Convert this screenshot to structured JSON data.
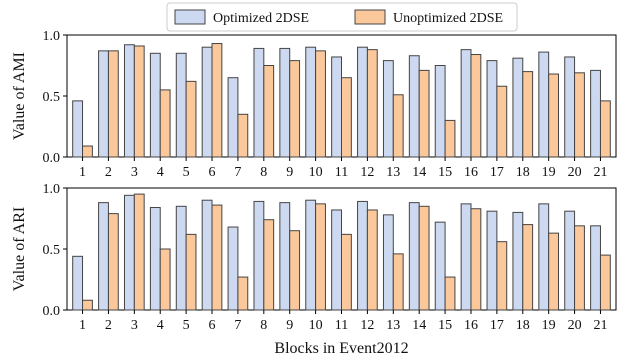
{
  "chart_data": [
    {
      "type": "bar",
      "categories": [
        "1",
        "2",
        "3",
        "4",
        "5",
        "6",
        "7",
        "8",
        "9",
        "10",
        "11",
        "12",
        "13",
        "14",
        "15",
        "16",
        "17",
        "18",
        "19",
        "20",
        "21"
      ],
      "series": [
        {
          "name": "Optimized 2DSE",
          "color": "#ccd9f0",
          "values": [
            0.46,
            0.87,
            0.92,
            0.85,
            0.85,
            0.9,
            0.65,
            0.89,
            0.89,
            0.9,
            0.82,
            0.9,
            0.79,
            0.83,
            0.75,
            0.88,
            0.79,
            0.81,
            0.86,
            0.82,
            0.71
          ]
        },
        {
          "name": "Unoptimized 2DSE",
          "color": "#fbc89c",
          "values": [
            0.09,
            0.87,
            0.91,
            0.55,
            0.62,
            0.93,
            0.35,
            0.75,
            0.79,
            0.87,
            0.65,
            0.88,
            0.51,
            0.71,
            0.3,
            0.84,
            0.58,
            0.7,
            0.68,
            0.69,
            0.46
          ]
        }
      ],
      "ylabel": "Value of AMI",
      "ylim": [
        0,
        1.0
      ],
      "yticks": [
        "0.0",
        "0.5",
        "1.0"
      ]
    },
    {
      "type": "bar",
      "categories": [
        "1",
        "2",
        "3",
        "4",
        "5",
        "6",
        "7",
        "8",
        "9",
        "10",
        "11",
        "12",
        "13",
        "14",
        "15",
        "16",
        "17",
        "18",
        "19",
        "20",
        "21"
      ],
      "series": [
        {
          "name": "Optimized 2DSE",
          "color": "#ccd9f0",
          "values": [
            0.44,
            0.88,
            0.94,
            0.84,
            0.85,
            0.9,
            0.68,
            0.89,
            0.88,
            0.9,
            0.82,
            0.89,
            0.78,
            0.88,
            0.72,
            0.87,
            0.81,
            0.8,
            0.87,
            0.81,
            0.69
          ]
        },
        {
          "name": "Unoptimized 2DSE",
          "color": "#fbc89c",
          "values": [
            0.08,
            0.79,
            0.95,
            0.5,
            0.62,
            0.86,
            0.27,
            0.74,
            0.65,
            0.87,
            0.62,
            0.82,
            0.46,
            0.85,
            0.27,
            0.83,
            0.56,
            0.7,
            0.63,
            0.69,
            0.45
          ]
        }
      ],
      "ylabel": "Value of ARI",
      "xlabel": "Blocks in Event2012",
      "ylim": [
        0,
        1.0
      ],
      "yticks": [
        "0.0",
        "0.5",
        "1.0"
      ]
    }
  ],
  "legend": {
    "position": "top-center",
    "items": [
      {
        "label": "Optimized 2DSE",
        "color": "#ccd9f0"
      },
      {
        "label": "Unoptimized 2DSE",
        "color": "#fbc89c"
      }
    ]
  },
  "style": {
    "bar_edge": "#444444",
    "axis_color": "#000000"
  }
}
